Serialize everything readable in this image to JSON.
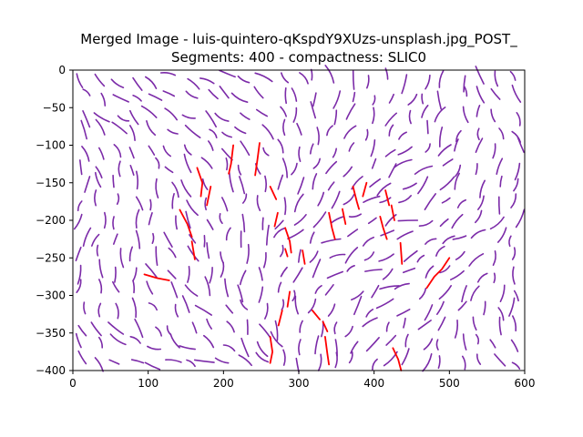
{
  "chart_data": {
    "type": "line",
    "title": "Merged Image - luis-quintero-qKspdY9XUzs-unsplash.jpg_POST_",
    "subtitle": "Segments: 400 - compactness: SLIC0",
    "xlabel": "",
    "ylabel": "",
    "xlim": [
      0,
      600
    ],
    "ylim": [
      -400,
      0
    ],
    "x_ticks": [
      0,
      100,
      200,
      300,
      400,
      500,
      600
    ],
    "y_ticks": [
      0,
      -50,
      -100,
      -150,
      -200,
      -250,
      -300,
      -350,
      -400
    ],
    "grid": false,
    "legend": "none",
    "colors": {
      "segments": "#7b2aa8",
      "highlighted": "#ff0000"
    },
    "segment_field": {
      "x_range": [
        0,
        600
      ],
      "y_range": [
        -400,
        0
      ],
      "approx_count": 400
    },
    "highlighted_segments": [
      [
        [
          165,
          -130
        ],
        [
          172,
          -150
        ],
        [
          170,
          -168
        ]
      ],
      [
        [
          183,
          -155
        ],
        [
          178,
          -180
        ]
      ],
      [
        [
          142,
          -186
        ],
        [
          152,
          -205
        ],
        [
          158,
          -222
        ]
      ],
      [
        [
          158,
          -228
        ],
        [
          162,
          -252
        ]
      ],
      [
        [
          95,
          -272
        ],
        [
          112,
          -277
        ],
        [
          128,
          -280
        ]
      ],
      [
        [
          213,
          -100
        ],
        [
          210,
          -125
        ],
        [
          207,
          -138
        ]
      ],
      [
        [
          248,
          -97
        ],
        [
          245,
          -120
        ],
        [
          242,
          -140
        ]
      ],
      [
        [
          262,
          -155
        ],
        [
          270,
          -172
        ]
      ],
      [
        [
          272,
          -190
        ],
        [
          268,
          -208
        ]
      ],
      [
        [
          282,
          -210
        ],
        [
          288,
          -228
        ],
        [
          290,
          -243
        ]
      ],
      [
        [
          282,
          -238
        ],
        [
          285,
          -248
        ]
      ],
      [
        [
          305,
          -240
        ],
        [
          308,
          -258
        ]
      ],
      [
        [
          340,
          -190
        ],
        [
          344,
          -210
        ],
        [
          348,
          -225
        ]
      ],
      [
        [
          358,
          -185
        ],
        [
          362,
          -205
        ]
      ],
      [
        [
          372,
          -155
        ],
        [
          377,
          -175
        ],
        [
          380,
          -185
        ]
      ],
      [
        [
          390,
          -150
        ],
        [
          385,
          -168
        ]
      ],
      [
        [
          415,
          -160
        ],
        [
          420,
          -180
        ]
      ],
      [
        [
          423,
          -180
        ],
        [
          427,
          -200
        ]
      ],
      [
        [
          408,
          -195
        ],
        [
          412,
          -210
        ],
        [
          417,
          -225
        ]
      ],
      [
        [
          435,
          -230
        ],
        [
          437,
          -258
        ]
      ],
      [
        [
          470,
          -290
        ],
        [
          480,
          -275
        ],
        [
          490,
          -265
        ],
        [
          500,
          -250
        ]
      ],
      [
        [
          288,
          -295
        ],
        [
          285,
          -315
        ]
      ],
      [
        [
          278,
          -320
        ],
        [
          273,
          -340
        ]
      ],
      [
        [
          262,
          -355
        ],
        [
          265,
          -375
        ],
        [
          262,
          -390
        ]
      ],
      [
        [
          318,
          -320
        ],
        [
          328,
          -332
        ]
      ],
      [
        [
          332,
          -335
        ],
        [
          338,
          -348
        ]
      ],
      [
        [
          335,
          -355
        ],
        [
          338,
          -378
        ],
        [
          340,
          -392
        ]
      ],
      [
        [
          425,
          -370
        ],
        [
          432,
          -385
        ],
        [
          436,
          -400
        ]
      ]
    ]
  }
}
